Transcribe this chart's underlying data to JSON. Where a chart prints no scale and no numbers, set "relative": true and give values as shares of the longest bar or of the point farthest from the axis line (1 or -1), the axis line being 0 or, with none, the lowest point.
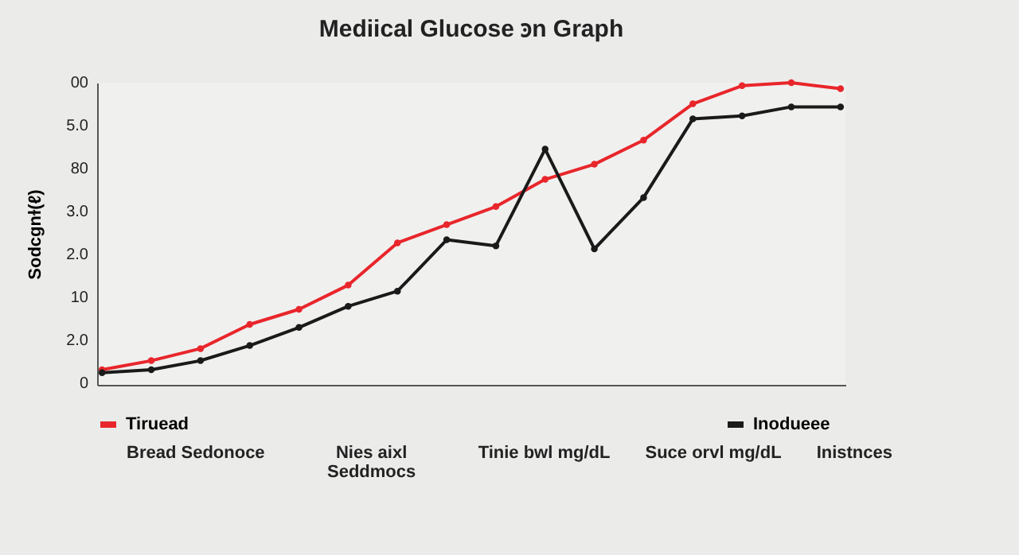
{
  "chart_data": {
    "type": "line",
    "title": "Mediical Glucose ꜿn Graph",
    "ylabel": "Sodcgnɫ(ℓ)",
    "relative": true,
    "categories": [
      null,
      null,
      null,
      null,
      null,
      null,
      null,
      null,
      null,
      null,
      null,
      null,
      null,
      null,
      null,
      null
    ],
    "marker": "circle",
    "line_style": "solid",
    "legend": "bottom",
    "series": [
      {
        "name": "Tiruead",
        "color": "#e8262b",
        "values": [
          0.05,
          0.08,
          0.12,
          0.2,
          0.25,
          0.33,
          0.47,
          0.53,
          0.59,
          0.68,
          0.73,
          0.81,
          0.93,
          0.99,
          1.0,
          0.98
        ]
      },
      {
        "name": "Inodueee",
        "color": "#1a1a1a",
        "values": [
          0.04,
          0.05,
          0.08,
          0.13,
          0.19,
          0.26,
          0.31,
          0.48,
          0.46,
          0.78,
          0.45,
          0.62,
          0.88,
          0.89,
          0.92,
          0.92
        ]
      }
    ],
    "annotations": [
      "00",
      "5.0",
      "80",
      "3.0",
      "2.0",
      "10",
      "2.0",
      "0",
      "Bread Sedonoce",
      "Nies aixl Seddmocs",
      "Tinie bwl mg/dL",
      "Suce orvl mg/dL",
      "Inistnces"
    ]
  }
}
